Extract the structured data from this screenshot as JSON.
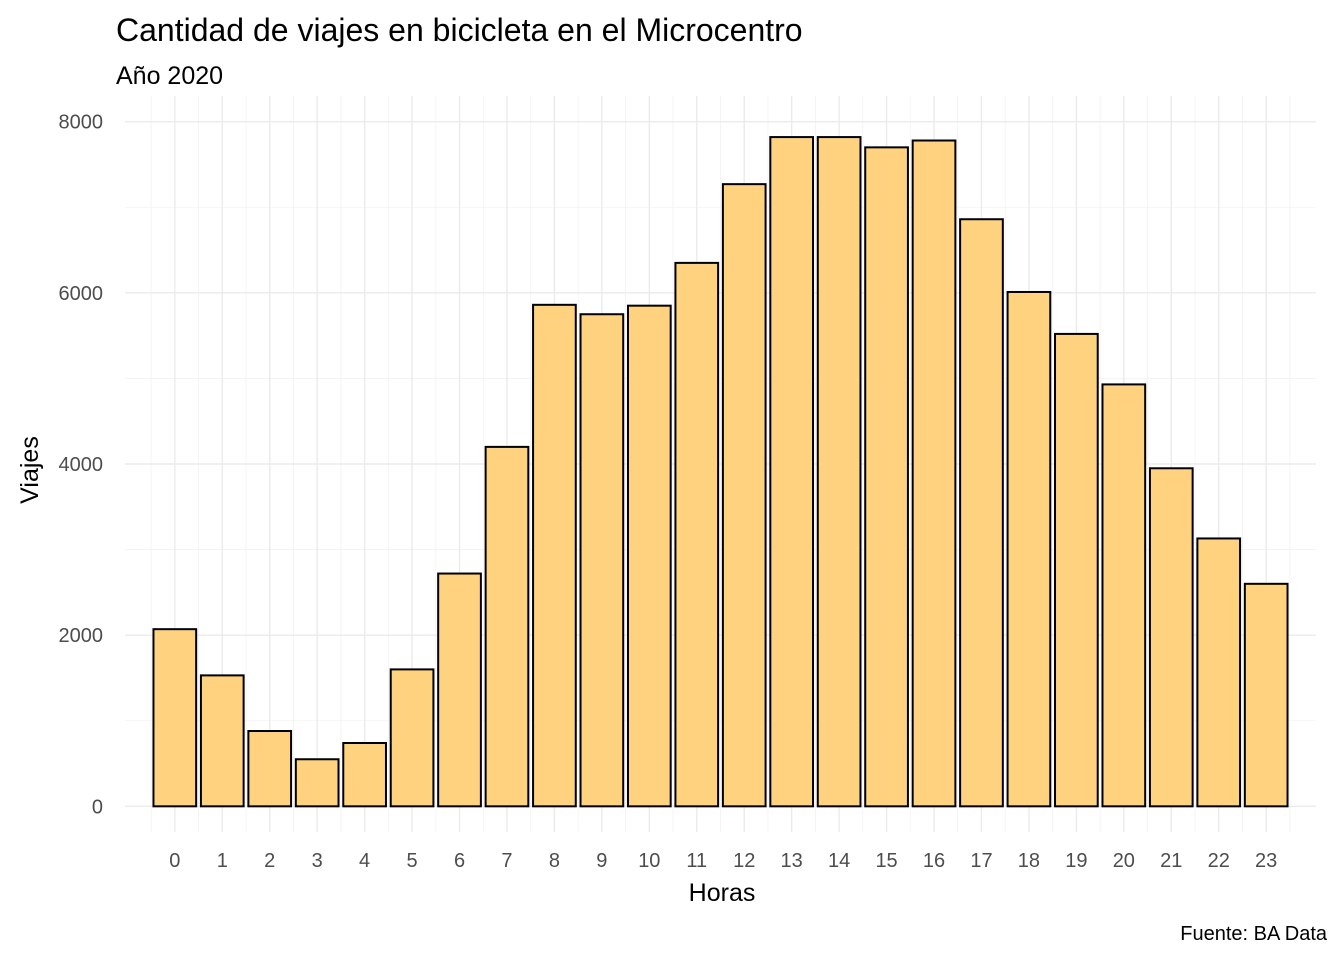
{
  "colors": {
    "bar_fill": "#FFD27F",
    "bar_stroke": "#000000",
    "text": "#000000",
    "tick_text": "#4d4d4d",
    "grid": "#ebebeb"
  },
  "chart_data": {
    "type": "bar",
    "title": "Cantidad de viajes en bicicleta en el Microcentro",
    "subtitle": "Año 2020",
    "xlabel": "Horas",
    "ylabel": "Viajes",
    "caption": "Fuente: BA Data",
    "categories": [
      "0",
      "1",
      "2",
      "3",
      "4",
      "5",
      "6",
      "7",
      "8",
      "9",
      "10",
      "11",
      "12",
      "13",
      "14",
      "15",
      "16",
      "17",
      "18",
      "19",
      "20",
      "21",
      "22",
      "23"
    ],
    "values": [
      2070,
      1530,
      880,
      550,
      740,
      1600,
      2720,
      4200,
      5860,
      5750,
      5850,
      6350,
      7270,
      7820,
      7820,
      7700,
      7780,
      6860,
      6010,
      5520,
      4930,
      3950,
      3130,
      2600
    ],
    "yticks": [
      0,
      2000,
      4000,
      6000,
      8000
    ],
    "ylim": [
      -300,
      8300
    ],
    "xlim": [
      -1.05,
      24.05
    ],
    "grid": true,
    "legend": "none"
  }
}
